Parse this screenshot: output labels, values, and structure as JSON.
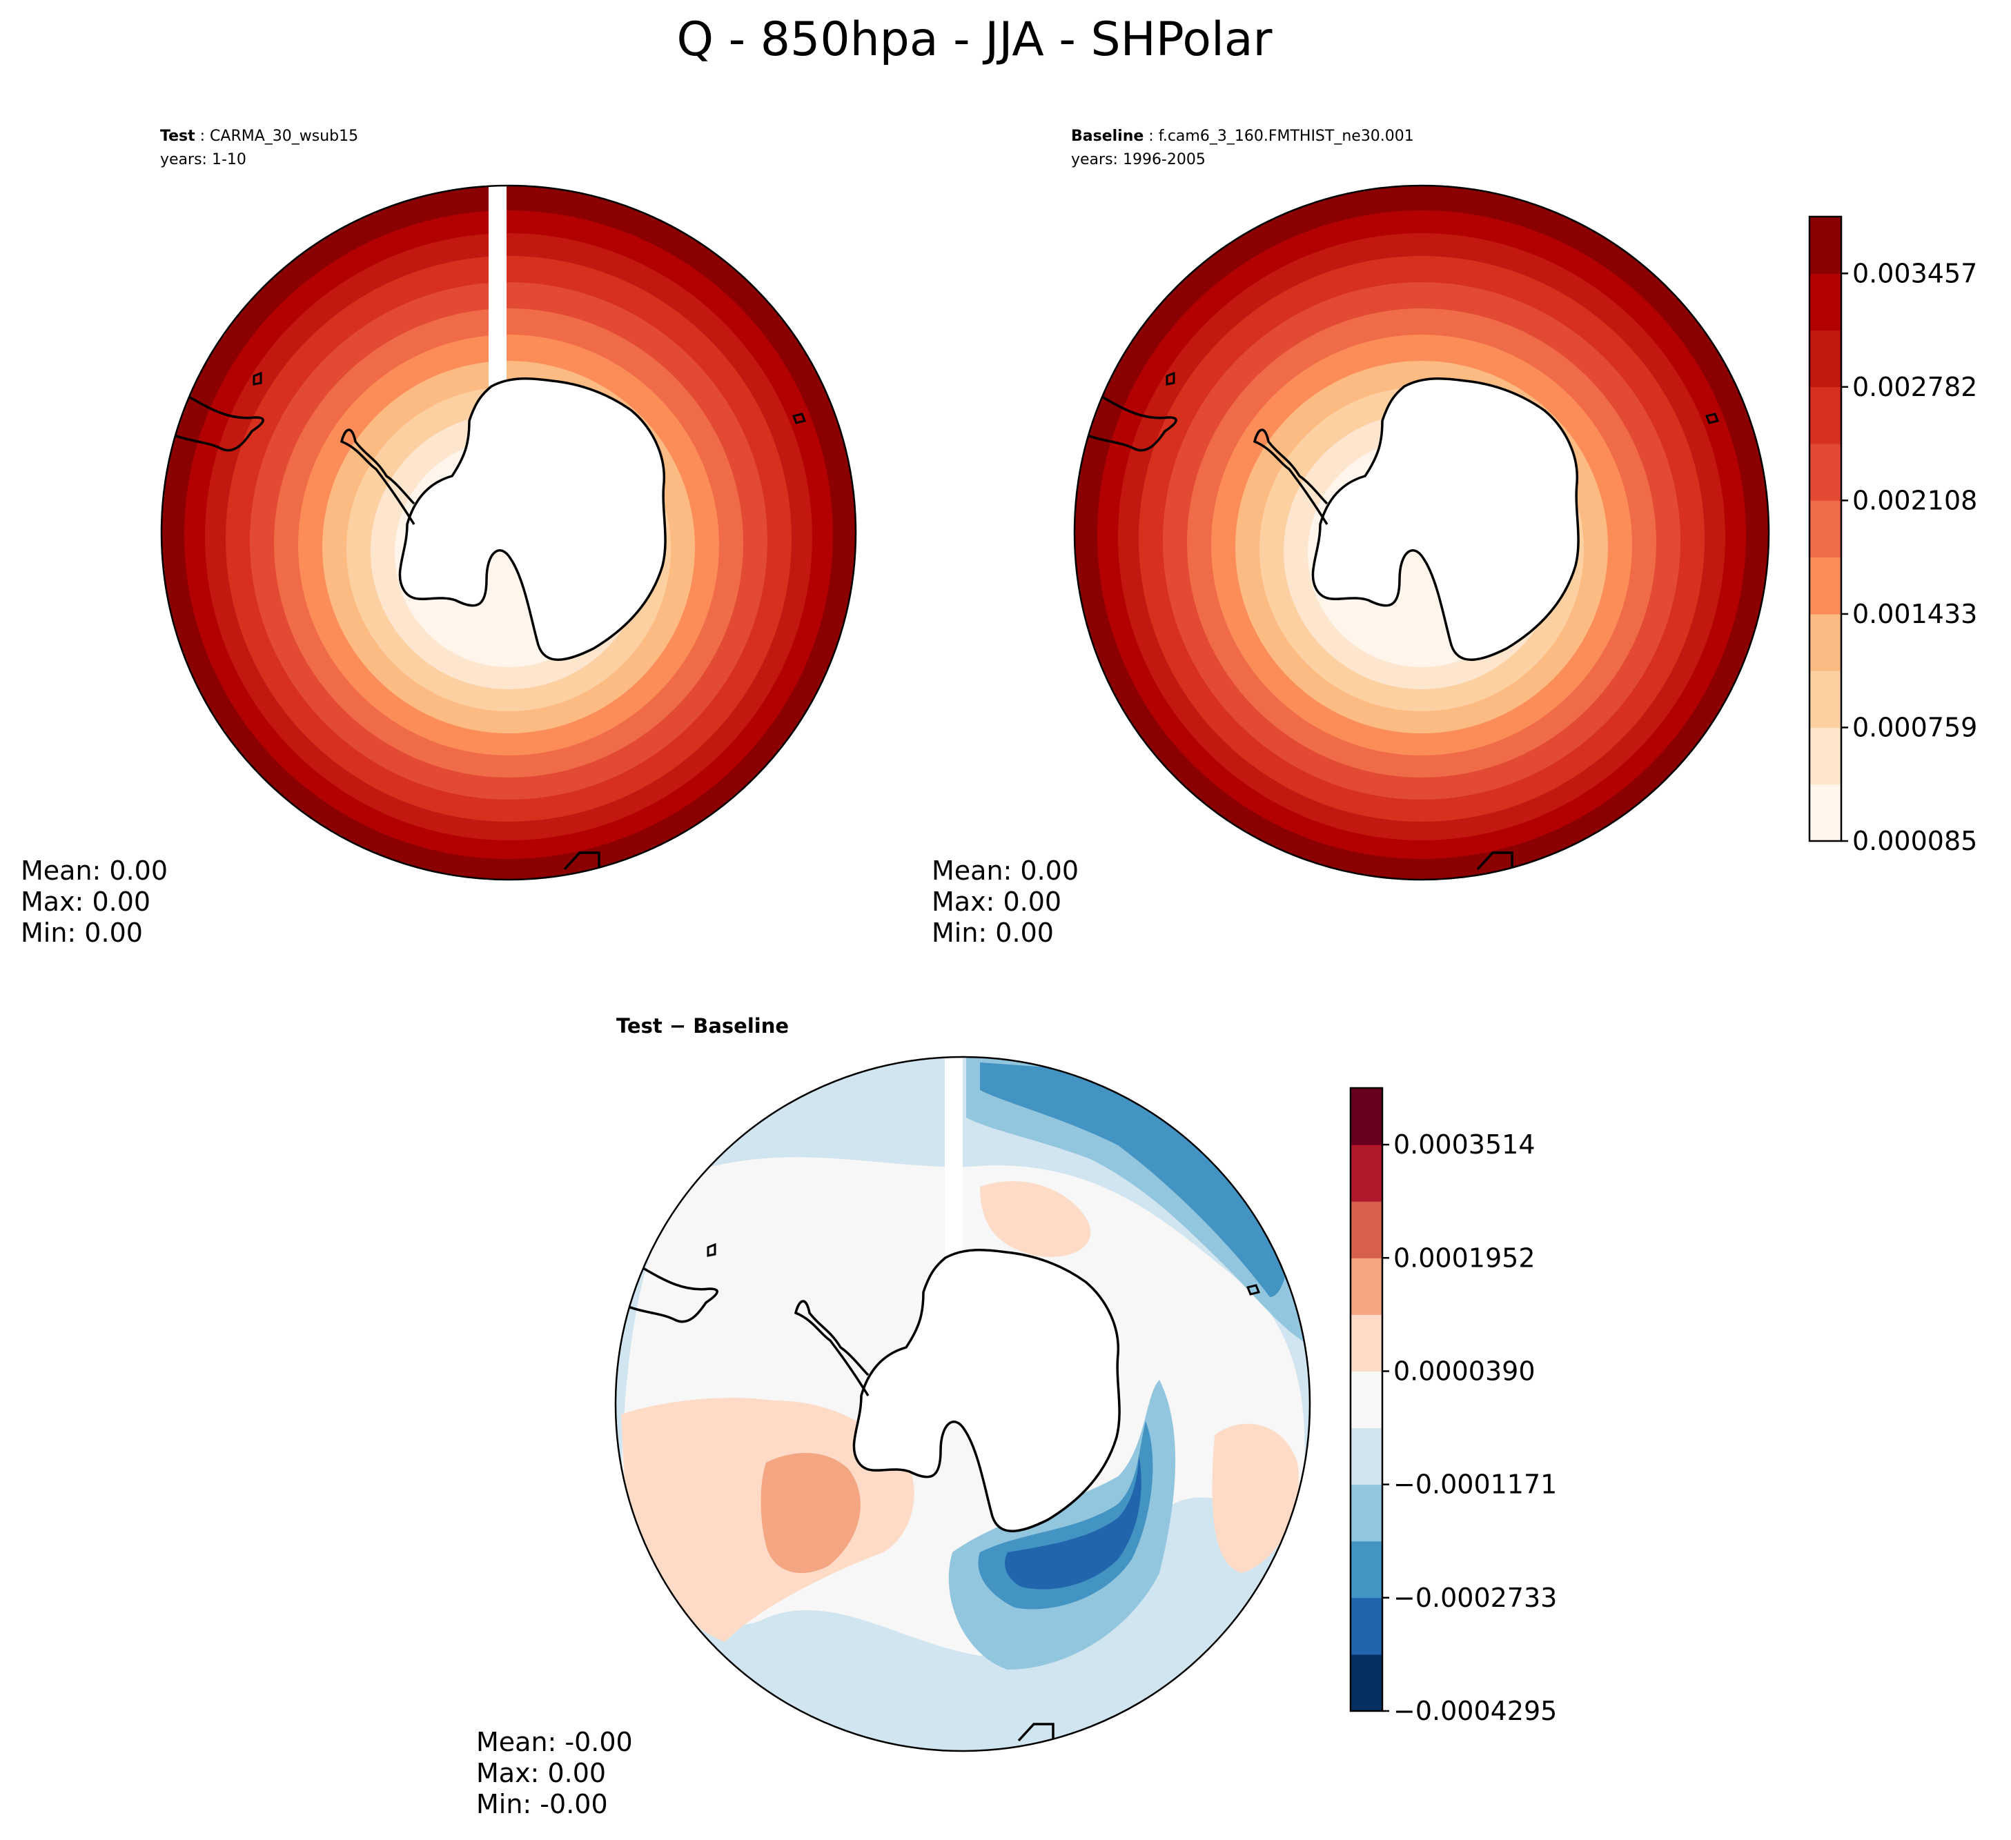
{
  "figure": {
    "title": "Q - 850hpa - JJA - SHPolar"
  },
  "panels": [
    {
      "id": "test",
      "header_label": "Test",
      "header_value": "CARMA_30_wsub15",
      "years": "years: 1-10",
      "stats": [
        "Mean:  0.00",
        "Max:  0.00",
        "Min:  0.00"
      ],
      "has_gap": true
    },
    {
      "id": "baseline",
      "header_label": "Baseline",
      "header_value": "f.cam6_3_160.FMTHIST_ne30.001",
      "years": "years: 1996-2005",
      "stats": [
        "Mean:  0.00",
        "Max:  0.00",
        "Min:  0.00"
      ],
      "has_gap": false
    },
    {
      "id": "diff",
      "header_label": "Test − Baseline",
      "stats": [
        "Mean: -0.00",
        "Max:  0.00",
        "Min: -0.00"
      ],
      "has_gap": true
    }
  ],
  "colorbars": {
    "field": {
      "ticks": [
        "0.000085",
        "0.000759",
        "0.001433",
        "0.002108",
        "0.002782",
        "0.003457"
      ],
      "colors": [
        "#fff5eb",
        "#fee6ce",
        "#fdd0a2",
        "#fdbb84",
        "#fc8d59",
        "#f06c49",
        "#e34a33",
        "#d7301f",
        "#c2180f",
        "#b30000",
        "#8b0000"
      ]
    },
    "difference": {
      "ticks": [
        "−0.0004295",
        "−0.0002733",
        "−0.0001171",
        "0.0000390",
        "0.0001952",
        "0.0003514"
      ],
      "colors": [
        "#053061",
        "#2166ac",
        "#4393c3",
        "#92c5de",
        "#d1e5f0",
        "#f7f7f7",
        "#fddbc7",
        "#f4a582",
        "#d6604d",
        "#b2182b",
        "#67001f"
      ]
    }
  }
}
